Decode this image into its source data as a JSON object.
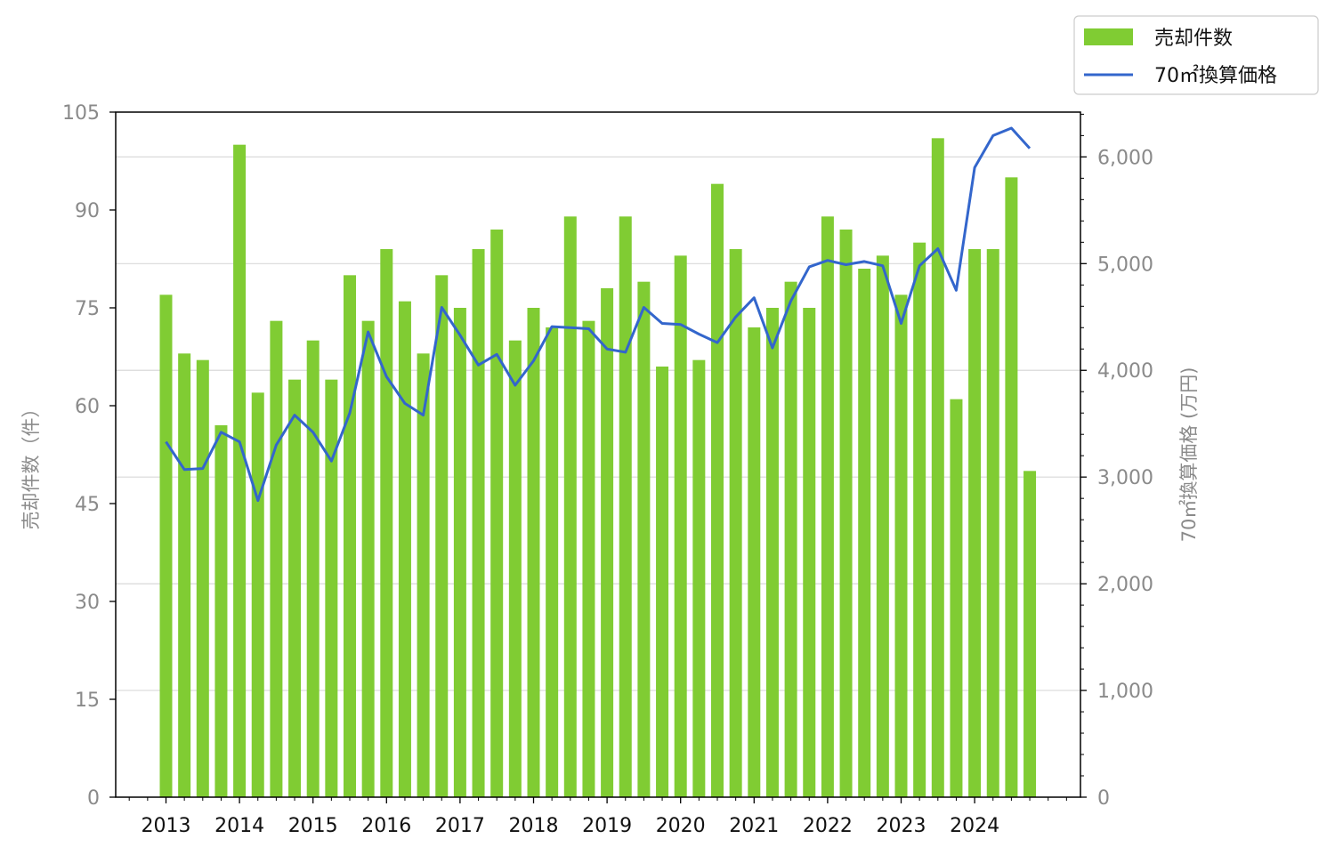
{
  "chart_data": {
    "type": "bar",
    "x_unit": "quarter",
    "x_ticks": [
      "2013",
      "2014",
      "2015",
      "2016",
      "2017",
      "2018",
      "2019",
      "2020",
      "2021",
      "2022",
      "2023",
      "2024"
    ],
    "categories": [
      "2013 Q1",
      "2013 Q2",
      "2013 Q3",
      "2013 Q4",
      "2014 Q1",
      "2014 Q2",
      "2014 Q3",
      "2014 Q4",
      "2015 Q1",
      "2015 Q2",
      "2015 Q3",
      "2015 Q4",
      "2016 Q1",
      "2016 Q2",
      "2016 Q3",
      "2016 Q4",
      "2017 Q1",
      "2017 Q2",
      "2017 Q3",
      "2017 Q4",
      "2018 Q1",
      "2018 Q2",
      "2018 Q3",
      "2018 Q4",
      "2019 Q1",
      "2019 Q2",
      "2019 Q3",
      "2019 Q4",
      "2020 Q1",
      "2020 Q2",
      "2020 Q3",
      "2020 Q4",
      "2021 Q1",
      "2021 Q2",
      "2021 Q3",
      "2021 Q4",
      "2022 Q1",
      "2022 Q2",
      "2022 Q3",
      "2022 Q4",
      "2023 Q1",
      "2023 Q2",
      "2023 Q3",
      "2023 Q4",
      "2024 Q1",
      "2024 Q2",
      "2024 Q3",
      "2024 Q4"
    ],
    "series": [
      {
        "name": "売却件数",
        "type": "bar",
        "axis": "left",
        "color": "#80cc33",
        "values": [
          77,
          68,
          67,
          57,
          100,
          62,
          73,
          64,
          70,
          64,
          80,
          73,
          84,
          76,
          68,
          80,
          75,
          84,
          87,
          70,
          75,
          72,
          89,
          73,
          78,
          89,
          79,
          66,
          83,
          67,
          94,
          84,
          72,
          75,
          79,
          75,
          89,
          87,
          81,
          83,
          77,
          85,
          101,
          61,
          84,
          84,
          95,
          50
        ]
      },
      {
        "name": "70㎡換算価格",
        "type": "line",
        "axis": "right",
        "color": "#3366cc",
        "values": [
          3330,
          3070,
          3080,
          3420,
          3330,
          2780,
          3300,
          3580,
          3420,
          3150,
          3600,
          4360,
          3940,
          3690,
          3580,
          4590,
          4330,
          4050,
          4150,
          3860,
          4090,
          4410,
          4400,
          4390,
          4200,
          4170,
          4590,
          4440,
          4430,
          4340,
          4260,
          4500,
          4680,
          4210,
          4650,
          4970,
          5030,
          4990,
          5020,
          4980,
          4440,
          4980,
          5140,
          4750,
          5900,
          6200,
          6270,
          6080
        ]
      }
    ],
    "y_left": {
      "label": "売却件数（件）",
      "range": [
        0,
        105
      ],
      "ticks": [
        "0",
        "15",
        "30",
        "45",
        "60",
        "75",
        "90",
        "105"
      ]
    },
    "y_right": {
      "label": "70㎡換算価格 (万円)",
      "range": [
        0,
        6420
      ],
      "ticks": [
        "0",
        "1,000",
        "2,000",
        "3,000",
        "4,000",
        "5,000",
        "6,000"
      ]
    },
    "grid": "horizontal, right axis",
    "legend": {
      "position": "top-right outside",
      "entries": [
        "売却件数",
        "70㎡換算価格"
      ]
    }
  }
}
